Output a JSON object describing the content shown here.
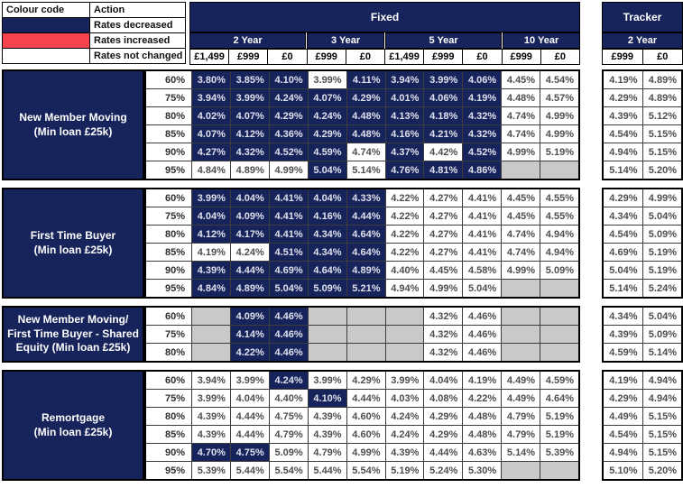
{
  "colors": {
    "header": "#17235B",
    "decreased": "#17235B",
    "increased": "#F8434E",
    "unchanged": "#FFFFFF",
    "empty": "#C9C9C9",
    "text_on_dark": "#DEE1EC",
    "text_on_light": "#4E4E4E"
  },
  "legend": {
    "title": "Colour code",
    "action": "Action",
    "rows": [
      {
        "state": "decreased",
        "label": "Rates decreased"
      },
      {
        "state": "increased",
        "label": "Rates increased"
      },
      {
        "state": "unchanged",
        "label": "Rates not changed"
      }
    ]
  },
  "fixed_header": {
    "title": "Fixed",
    "terms": [
      {
        "label": "2 Year",
        "fees": [
          "£1,499",
          "£999",
          "£0"
        ]
      },
      {
        "label": "3 Year",
        "fees": [
          "£999",
          "£0"
        ]
      },
      {
        "label": "5 Year",
        "fees": [
          "£1,499",
          "£999",
          "£0"
        ]
      },
      {
        "label": "10 Year",
        "fees": [
          "£999",
          "£0"
        ]
      }
    ]
  },
  "tracker_header": {
    "title": "Tracker",
    "terms": [
      {
        "label": "2 Year",
        "fees": [
          "£999",
          "£0"
        ]
      }
    ]
  },
  "groups": [
    {
      "label_lines": [
        "New Member Moving",
        "(Min loan £25k)"
      ],
      "rows": [
        {
          "ltv": "60%",
          "fixed": [
            "d:3.80%",
            "d:3.85%",
            "d:4.10%",
            "n:3.99%",
            "d:4.11%",
            "d:3.94%",
            "d:3.99%",
            "d:4.06%",
            "n:4.45%",
            "n:4.54%"
          ],
          "tracker": [
            "n:4.19%",
            "n:4.89%"
          ]
        },
        {
          "ltv": "75%",
          "fixed": [
            "d:3.94%",
            "d:3.99%",
            "d:4.24%",
            "d:4.07%",
            "d:4.29%",
            "d:4.01%",
            "d:4.06%",
            "d:4.19%",
            "n:4.48%",
            "n:4.57%"
          ],
          "tracker": [
            "n:4.29%",
            "n:4.89%"
          ]
        },
        {
          "ltv": "80%",
          "fixed": [
            "d:4.02%",
            "d:4.07%",
            "d:4.29%",
            "d:4.24%",
            "d:4.48%",
            "d:4.13%",
            "d:4.18%",
            "d:4.32%",
            "n:4.74%",
            "n:4.99%"
          ],
          "tracker": [
            "n:4.39%",
            "n:5.12%"
          ]
        },
        {
          "ltv": "85%",
          "fixed": [
            "d:4.07%",
            "d:4.12%",
            "d:4.36%",
            "d:4.29%",
            "d:4.48%",
            "d:4.16%",
            "d:4.21%",
            "d:4.32%",
            "n:4.74%",
            "n:4.99%"
          ],
          "tracker": [
            "n:4.54%",
            "n:5.15%"
          ]
        },
        {
          "ltv": "90%",
          "fixed": [
            "d:4.27%",
            "d:4.32%",
            "d:4.52%",
            "d:4.59%",
            "n:4.74%",
            "d:4.37%",
            "n:4.42%",
            "d:4.52%",
            "n:4.99%",
            "n:5.19%"
          ],
          "tracker": [
            "n:4.94%",
            "n:5.15%"
          ]
        },
        {
          "ltv": "95%",
          "fixed": [
            "n:4.84%",
            "n:4.89%",
            "n:4.99%",
            "d:5.04%",
            "n:5.14%",
            "d:4.76%",
            "d:4.81%",
            "d:4.86%",
            "e:",
            "e:"
          ],
          "tracker": [
            "n:5.14%",
            "n:5.20%"
          ]
        }
      ]
    },
    {
      "label_lines": [
        "First Time Buyer",
        "(Min loan £25k)"
      ],
      "rows": [
        {
          "ltv": "60%",
          "fixed": [
            "d:3.99%",
            "d:4.04%",
            "d:4.41%",
            "d:4.04%",
            "d:4.33%",
            "n:4.22%",
            "n:4.27%",
            "n:4.41%",
            "n:4.45%",
            "n:4.55%"
          ],
          "tracker": [
            "n:4.29%",
            "n:4.99%"
          ]
        },
        {
          "ltv": "75%",
          "fixed": [
            "d:4.04%",
            "d:4.09%",
            "d:4.41%",
            "d:4.16%",
            "d:4.44%",
            "n:4.22%",
            "n:4.27%",
            "n:4.41%",
            "n:4.45%",
            "n:4.55%"
          ],
          "tracker": [
            "n:4.34%",
            "n:5.04%"
          ]
        },
        {
          "ltv": "80%",
          "fixed": [
            "d:4.12%",
            "d:4.17%",
            "d:4.41%",
            "d:4.34%",
            "d:4.64%",
            "n:4.22%",
            "n:4.27%",
            "n:4.41%",
            "n:4.74%",
            "n:4.94%"
          ],
          "tracker": [
            "n:4.54%",
            "n:5.09%"
          ]
        },
        {
          "ltv": "85%",
          "fixed": [
            "n:4.19%",
            "n:4.24%",
            "d:4.51%",
            "d:4.34%",
            "d:4.64%",
            "n:4.22%",
            "n:4.27%",
            "n:4.41%",
            "n:4.74%",
            "n:4.94%"
          ],
          "tracker": [
            "n:4.69%",
            "n:5.19%"
          ]
        },
        {
          "ltv": "90%",
          "fixed": [
            "d:4.39%",
            "d:4.44%",
            "d:4.69%",
            "d:4.64%",
            "d:4.89%",
            "n:4.40%",
            "n:4.45%",
            "n:4.58%",
            "n:4.99%",
            "n:5.09%"
          ],
          "tracker": [
            "n:5.04%",
            "n:5.19%"
          ]
        },
        {
          "ltv": "95%",
          "fixed": [
            "d:4.84%",
            "d:4.89%",
            "d:5.04%",
            "d:5.09%",
            "d:5.21%",
            "n:4.94%",
            "n:4.99%",
            "n:5.04%",
            "e:",
            "e:"
          ],
          "tracker": [
            "n:5.14%",
            "n:5.24%"
          ]
        }
      ]
    },
    {
      "label_lines": [
        "New Member Moving/",
        "First Time Buyer - Shared",
        "Equity (Min loan £25k)"
      ],
      "rows": [
        {
          "ltv": "60%",
          "fixed": [
            "e:",
            "d:4.09%",
            "d:4.46%",
            "e:",
            "e:",
            "e:",
            "n:4.32%",
            "n:4.46%",
            "e:",
            "e:"
          ],
          "tracker": [
            "n:4.34%",
            "n:5.04%"
          ]
        },
        {
          "ltv": "75%",
          "fixed": [
            "e:",
            "d:4.14%",
            "d:4.46%",
            "e:",
            "e:",
            "e:",
            "n:4.32%",
            "n:4.46%",
            "e:",
            "e:"
          ],
          "tracker": [
            "n:4.39%",
            "n:5.09%"
          ]
        },
        {
          "ltv": "80%",
          "fixed": [
            "e:",
            "d:4.22%",
            "d:4.46%",
            "e:",
            "e:",
            "e:",
            "n:4.32%",
            "n:4.46%",
            "e:",
            "e:"
          ],
          "tracker": [
            "n:4.59%",
            "n:5.14%"
          ]
        }
      ]
    },
    {
      "label_lines": [
        "Remortgage",
        "(Min loan £25k)"
      ],
      "rows": [
        {
          "ltv": "60%",
          "fixed": [
            "n:3.94%",
            "n:3.99%",
            "d:4.24%",
            "n:3.99%",
            "n:4.29%",
            "n:3.99%",
            "n:4.04%",
            "n:4.19%",
            "n:4.49%",
            "n:4.59%"
          ],
          "tracker": [
            "n:4.19%",
            "n:4.94%"
          ]
        },
        {
          "ltv": "75%",
          "fixed": [
            "n:3.99%",
            "n:4.04%",
            "n:4.40%",
            "d:4.10%",
            "n:4.44%",
            "n:4.03%",
            "n:4.08%",
            "n:4.22%",
            "n:4.49%",
            "n:4.64%"
          ],
          "tracker": [
            "n:4.29%",
            "n:4.94%"
          ]
        },
        {
          "ltv": "80%",
          "fixed": [
            "n:4.39%",
            "n:4.44%",
            "n:4.75%",
            "n:4.39%",
            "n:4.60%",
            "n:4.24%",
            "n:4.29%",
            "n:4.48%",
            "n:4.79%",
            "n:5.19%"
          ],
          "tracker": [
            "n:4.49%",
            "n:5.15%"
          ]
        },
        {
          "ltv": "85%",
          "fixed": [
            "n:4.39%",
            "n:4.44%",
            "n:4.79%",
            "n:4.39%",
            "n:4.60%",
            "n:4.24%",
            "n:4.29%",
            "n:4.48%",
            "n:4.79%",
            "n:5.19%"
          ],
          "tracker": [
            "n:4.54%",
            "n:5.15%"
          ]
        },
        {
          "ltv": "90%",
          "fixed": [
            "d:4.70%",
            "d:4.75%",
            "n:5.09%",
            "n:4.79%",
            "n:4.99%",
            "n:4.39%",
            "n:4.44%",
            "n:4.63%",
            "n:5.14%",
            "n:5.39%"
          ],
          "tracker": [
            "n:4.94%",
            "n:5.15%"
          ]
        },
        {
          "ltv": "95%",
          "fixed": [
            "n:5.39%",
            "n:5.44%",
            "n:5.54%",
            "n:5.44%",
            "n:5.54%",
            "n:5.19%",
            "n:5.24%",
            "n:5.30%",
            "e:",
            "e:"
          ],
          "tracker": [
            "n:5.10%",
            "n:5.20%"
          ]
        }
      ]
    }
  ]
}
